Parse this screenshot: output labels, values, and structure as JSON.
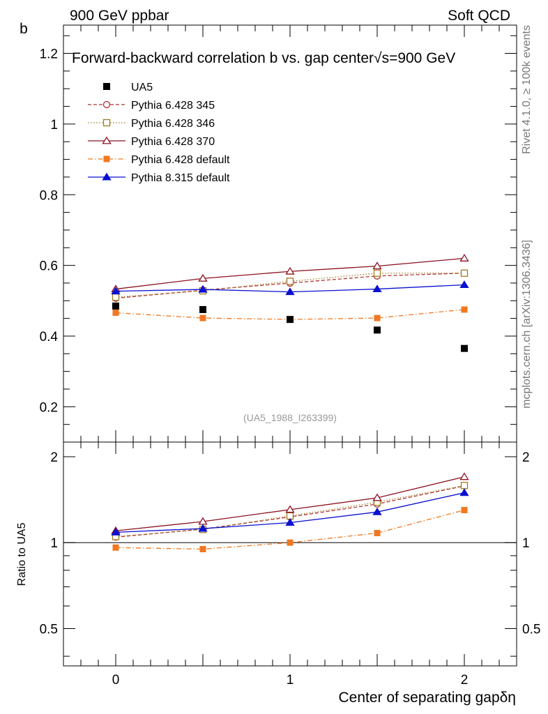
{
  "header": {
    "left": "900 GeV ppbar",
    "right": "Soft QCD"
  },
  "side_labels": {
    "rivet": "Rivet 4.1.0, ≥ 100k events",
    "mcplots": "mcplots.cern.ch [arXiv:1306.3436]"
  },
  "chart_data": {
    "type": "line",
    "title_prefix": "Forward-backward correlation b  vs. gap center",
    "title_suffix": "s=900 GeV",
    "title_sqrt": "√",
    "ylabel": "b",
    "xlabel": "Center of separating gapδη",
    "ratio_ylabel": "Ratio to UA5",
    "analysis_tag": "(UA5_1988_I263399)",
    "xlim": [
      -0.3,
      2.3
    ],
    "ylim": [
      0.1,
      1.28
    ],
    "x_ticks": [
      "0",
      "1",
      "2"
    ],
    "y_ticks": [
      "0.2",
      "0.4",
      "0.6",
      "0.8",
      "1",
      "1.2"
    ],
    "ratio_ylim": [
      0.37,
      2.25
    ],
    "ratio_y_ticks": [
      "0.5",
      "1",
      "2"
    ],
    "x": [
      0,
      0.5,
      1,
      1.5,
      2
    ],
    "series": [
      {
        "name": "UA5",
        "values": [
          0.485,
          0.475,
          0.447,
          0.417,
          0.365
        ],
        "ratio": [
          1,
          1,
          1,
          1,
          1
        ],
        "color": "#000000",
        "marker": "square-filled",
        "line": "none"
      },
      {
        "name": "Pythia 6.428 345",
        "values": [
          0.507,
          0.53,
          0.55,
          0.57,
          0.578
        ],
        "ratio": [
          1.045,
          1.115,
          1.23,
          1.365,
          1.58
        ],
        "color": "#b03030",
        "marker": "circle-open",
        "line": "dashed"
      },
      {
        "name": "Pythia 6.428 346",
        "values": [
          0.51,
          0.528,
          0.555,
          0.578,
          0.578
        ],
        "ratio": [
          1.05,
          1.112,
          1.24,
          1.385,
          1.585
        ],
        "color": "#a07a20",
        "marker": "square-open",
        "line": "dotted"
      },
      {
        "name": "Pythia 6.428 370",
        "values": [
          0.533,
          0.563,
          0.583,
          0.598,
          0.62
        ],
        "ratio": [
          1.1,
          1.185,
          1.305,
          1.435,
          1.7
        ],
        "color": "#8b1020",
        "marker": "triangle-open",
        "line": "solid"
      },
      {
        "name": "Pythia 6.428 default",
        "values": [
          0.466,
          0.451,
          0.447,
          0.451,
          0.475
        ],
        "ratio": [
          0.961,
          0.949,
          1.0,
          1.08,
          1.3
        ],
        "color": "#f07820",
        "marker": "square-filled",
        "line": "dashdot"
      },
      {
        "name": "Pythia 8.315 default",
        "values": [
          0.527,
          0.532,
          0.525,
          0.533,
          0.545
        ],
        "ratio": [
          1.087,
          1.12,
          1.175,
          1.28,
          1.495
        ],
        "color": "#0a10d0",
        "marker": "triangle-filled",
        "line": "solid"
      }
    ]
  }
}
